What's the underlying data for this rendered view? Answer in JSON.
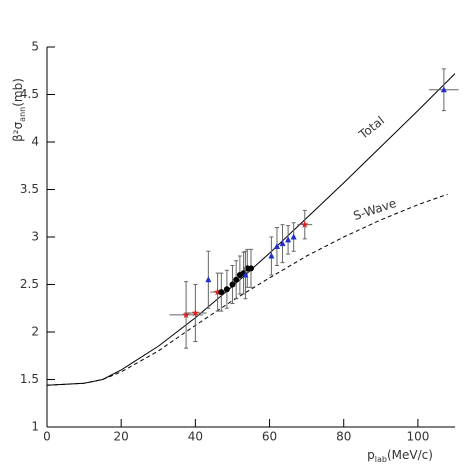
{
  "chart_data": {
    "type": "scatter",
    "xlabel": {
      "symbol": "p",
      "subscript": "lab",
      "unit": "(MeV/c)"
    },
    "ylabel": {
      "symbol": "β²σ",
      "subscript": "ann",
      "unit": "(mb)"
    },
    "xlim": [
      0,
      110
    ],
    "ylim": [
      1,
      5
    ],
    "xticks": [
      0,
      20,
      40,
      60,
      80,
      100
    ],
    "yticks": [
      1,
      1.5,
      2,
      2.5,
      3,
      3.5,
      4,
      4.5,
      5
    ],
    "lines": [
      {
        "label": "Total",
        "color": "#000000",
        "dashed": false,
        "x": [
          0,
          10,
          15,
          20,
          30,
          40,
          50,
          60,
          70,
          80,
          90,
          100,
          110
        ],
        "values": [
          1.44,
          1.46,
          1.5,
          1.6,
          1.85,
          2.15,
          2.48,
          2.83,
          3.2,
          3.57,
          3.95,
          4.33,
          4.72
        ]
      },
      {
        "label": "S-Wave",
        "color": "#000000",
        "dashed": true,
        "x": [
          0,
          10,
          15,
          20,
          30,
          40,
          50,
          60,
          70,
          80,
          90,
          100,
          108
        ],
        "values": [
          1.44,
          1.46,
          1.5,
          1.58,
          1.8,
          2.07,
          2.33,
          2.57,
          2.8,
          3.0,
          3.18,
          3.34,
          3.45
        ]
      }
    ],
    "series": [
      {
        "color": "#e02020",
        "marker": "star",
        "x": [
          37.5,
          40,
          46,
          69.5
        ],
        "values": [
          2.18,
          2.2,
          2.42,
          3.13
        ],
        "yerr": [
          0.35,
          0.3,
          0.2,
          0.15
        ],
        "xerr": [
          4.5,
          3,
          2,
          2
        ]
      },
      {
        "color": "#000000",
        "marker": "circle",
        "x": [
          47,
          48.5,
          50,
          51,
          52,
          53,
          54,
          55
        ],
        "values": [
          2.42,
          2.45,
          2.5,
          2.55,
          2.6,
          2.62,
          2.67,
          2.67
        ],
        "yerr": [
          0.2,
          0.2,
          0.2,
          0.2,
          0.2,
          0.22,
          0.2,
          0.2
        ],
        "xerr": [
          0.5,
          0.5,
          0.5,
          0.5,
          0.5,
          0.5,
          0.5,
          0.5
        ]
      },
      {
        "color": "#2030d0",
        "marker": "triangle",
        "x": [
          43.5,
          53.5,
          60.5,
          62,
          63.5,
          65,
          66.5,
          107
        ],
        "values": [
          2.55,
          2.6,
          2.8,
          2.9,
          2.93,
          2.97,
          3.0,
          4.55
        ],
        "yerr": [
          0.3,
          0.25,
          0.2,
          0.2,
          0.2,
          0.15,
          0.15,
          0.22
        ],
        "xerr": [
          0.5,
          0.5,
          0.5,
          0.5,
          0.5,
          0.5,
          0.5,
          4
        ]
      }
    ]
  }
}
